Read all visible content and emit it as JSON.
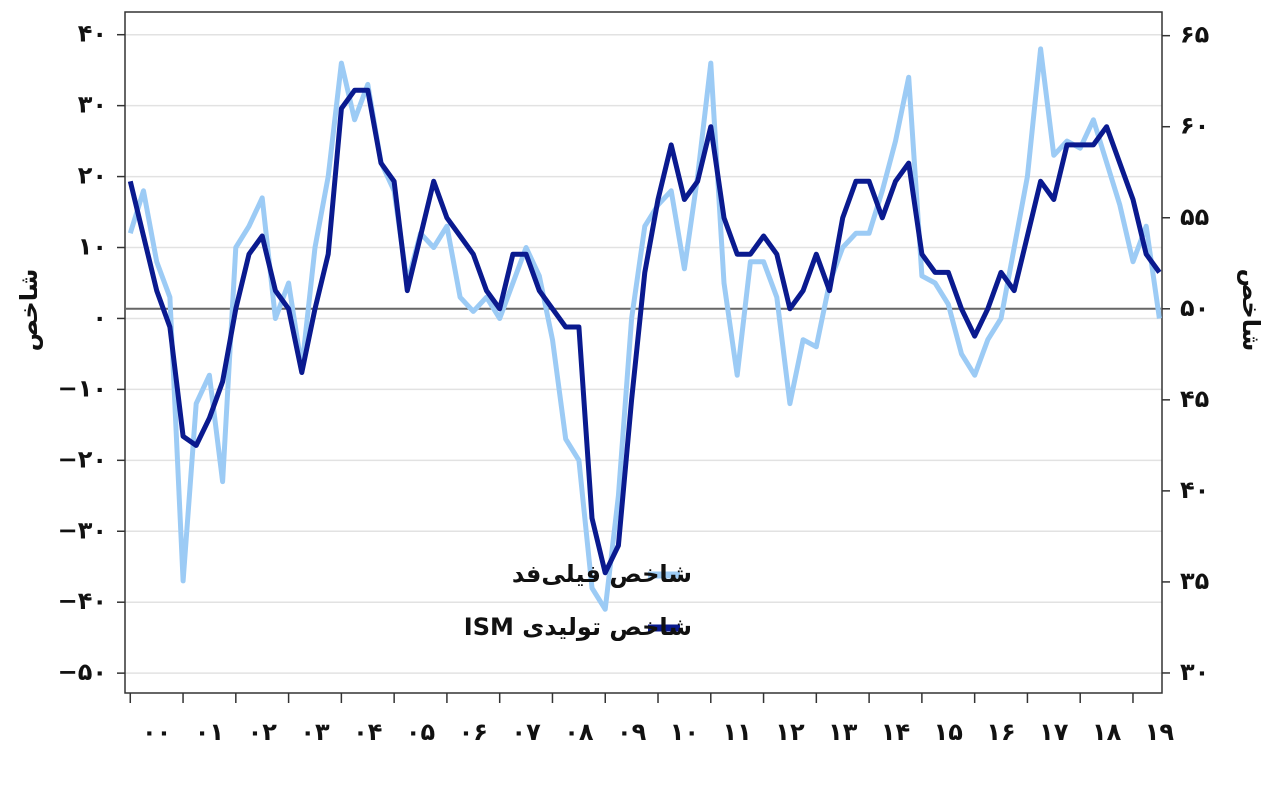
{
  "chart_data": {
    "type": "line",
    "ylabel": "شاخص",
    "y2label": "شاخص",
    "x": [
      0,
      0.25,
      0.5,
      0.75,
      1,
      1.25,
      1.5,
      1.75,
      2,
      2.25,
      2.5,
      2.75,
      3,
      3.25,
      3.5,
      3.75,
      4,
      4.25,
      4.5,
      4.75,
      5,
      5.25,
      5.5,
      5.75,
      6,
      6.25,
      6.5,
      6.75,
      7,
      7.25,
      7.5,
      7.75,
      8,
      8.25,
      8.5,
      8.75,
      9,
      9.25,
      9.5,
      9.75,
      10,
      10.25,
      10.5,
      10.75,
      11,
      11.25,
      11.5,
      11.75,
      12,
      12.25,
      12.5,
      12.75,
      13,
      13.25,
      13.5,
      13.75,
      14,
      14.25,
      14.5,
      14.75,
      15,
      15.25,
      15.5,
      15.75,
      16,
      16.25,
      16.5,
      16.75,
      17,
      17.25,
      17.5,
      17.75,
      18,
      18.25,
      18.5,
      18.75,
      19,
      19.25,
      19.5
    ],
    "series": [
      {
        "name": "شاخص فیلی‌فد",
        "color": "#9ccbf5",
        "axis": "y",
        "values": [
          12,
          18,
          8,
          3,
          -37,
          -12,
          -8,
          -23,
          10,
          13,
          17,
          0,
          5,
          -7,
          10,
          20,
          36,
          28,
          33,
          22,
          18,
          5,
          12,
          10,
          13,
          3,
          1,
          3,
          0,
          5,
          10,
          6,
          -3,
          -17,
          -20,
          -38,
          -41,
          -25,
          0,
          13,
          16,
          18,
          7,
          20,
          36,
          5,
          -8,
          8,
          8,
          3,
          -12,
          -3,
          -4,
          5,
          10,
          12,
          12,
          18,
          25,
          34,
          6,
          5,
          2,
          -5,
          -8,
          -3,
          0,
          10,
          20,
          38,
          23,
          25,
          24,
          28,
          22,
          16,
          8,
          13,
          0
        ]
      },
      {
        "name": "شاخص تولیدی ISM",
        "color": "#0a1a8f",
        "axis": "y2",
        "values": [
          57,
          54,
          51,
          49,
          43,
          42.5,
          44,
          46,
          50,
          53,
          54,
          51,
          50,
          46.5,
          50,
          53,
          61,
          62,
          62,
          58,
          57,
          51,
          54,
          57,
          55,
          54,
          53,
          51,
          50,
          53,
          53,
          51,
          50,
          49,
          49,
          38.5,
          35.5,
          37,
          45,
          52,
          56,
          59,
          56,
          57,
          60,
          55,
          53,
          53,
          54,
          53,
          50,
          51,
          53,
          51,
          55,
          57,
          57,
          55,
          57,
          58,
          53,
          52,
          52,
          50,
          48.5,
          50,
          52,
          51,
          54,
          57,
          56,
          59,
          59,
          59,
          60,
          58,
          56,
          53,
          52
        ]
      }
    ],
    "xlim": [
      -0.1,
      19.55
    ],
    "xticks": [
      {
        "value": 0,
        "label": "۰۰"
      },
      {
        "value": 1,
        "label": "۰۱"
      },
      {
        "value": 2,
        "label": "۰۲"
      },
      {
        "value": 3,
        "label": "۰۳"
      },
      {
        "value": 4,
        "label": "۰۴"
      },
      {
        "value": 5,
        "label": "۰۵"
      },
      {
        "value": 6,
        "label": "۰۶"
      },
      {
        "value": 7,
        "label": "۰۷"
      },
      {
        "value": 8,
        "label": "۰۸"
      },
      {
        "value": 9,
        "label": "۰۹"
      },
      {
        "value": 10,
        "label": "۱۰"
      },
      {
        "value": 11,
        "label": "۱۱"
      },
      {
        "value": 12,
        "label": "۱۲"
      },
      {
        "value": 13,
        "label": "۱۳"
      },
      {
        "value": 14,
        "label": "۱۴"
      },
      {
        "value": 15,
        "label": "۱۵"
      },
      {
        "value": 16,
        "label": "۱۶"
      },
      {
        "value": 17,
        "label": "۱۷"
      },
      {
        "value": 18,
        "label": "۱۸"
      },
      {
        "value": 19,
        "label": "۱۹"
      }
    ],
    "ylim": [
      -52.8,
      43.2
    ],
    "yticks": [
      {
        "value": 40,
        "label": "۴۰"
      },
      {
        "value": 30,
        "label": "۳۰"
      },
      {
        "value": 20,
        "label": "۲۰"
      },
      {
        "value": 10,
        "label": "۱۰"
      },
      {
        "value": 0,
        "label": "۰"
      },
      {
        "value": -10,
        "label": "−۱۰"
      },
      {
        "value": -20,
        "label": "−۲۰"
      },
      {
        "value": -30,
        "label": "−۳۰"
      },
      {
        "value": -40,
        "label": "−۴۰"
      },
      {
        "value": -50,
        "label": "−۵۰"
      }
    ],
    "y2lim": [
      28.9,
      66.3
    ],
    "y2ticks": [
      {
        "value": 65,
        "label": "۶۵"
      },
      {
        "value": 60,
        "label": "۶۰"
      },
      {
        "value": 55,
        "label": "۵۵"
      },
      {
        "value": 50,
        "label": "۵۰"
      },
      {
        "value": 45,
        "label": "۴۵"
      },
      {
        "value": 40,
        "label": "۴۰"
      },
      {
        "value": 35,
        "label": "۳۵"
      },
      {
        "value": 30,
        "label": "۳۰"
      }
    ],
    "reference_line_y2": 50,
    "grid": true
  }
}
